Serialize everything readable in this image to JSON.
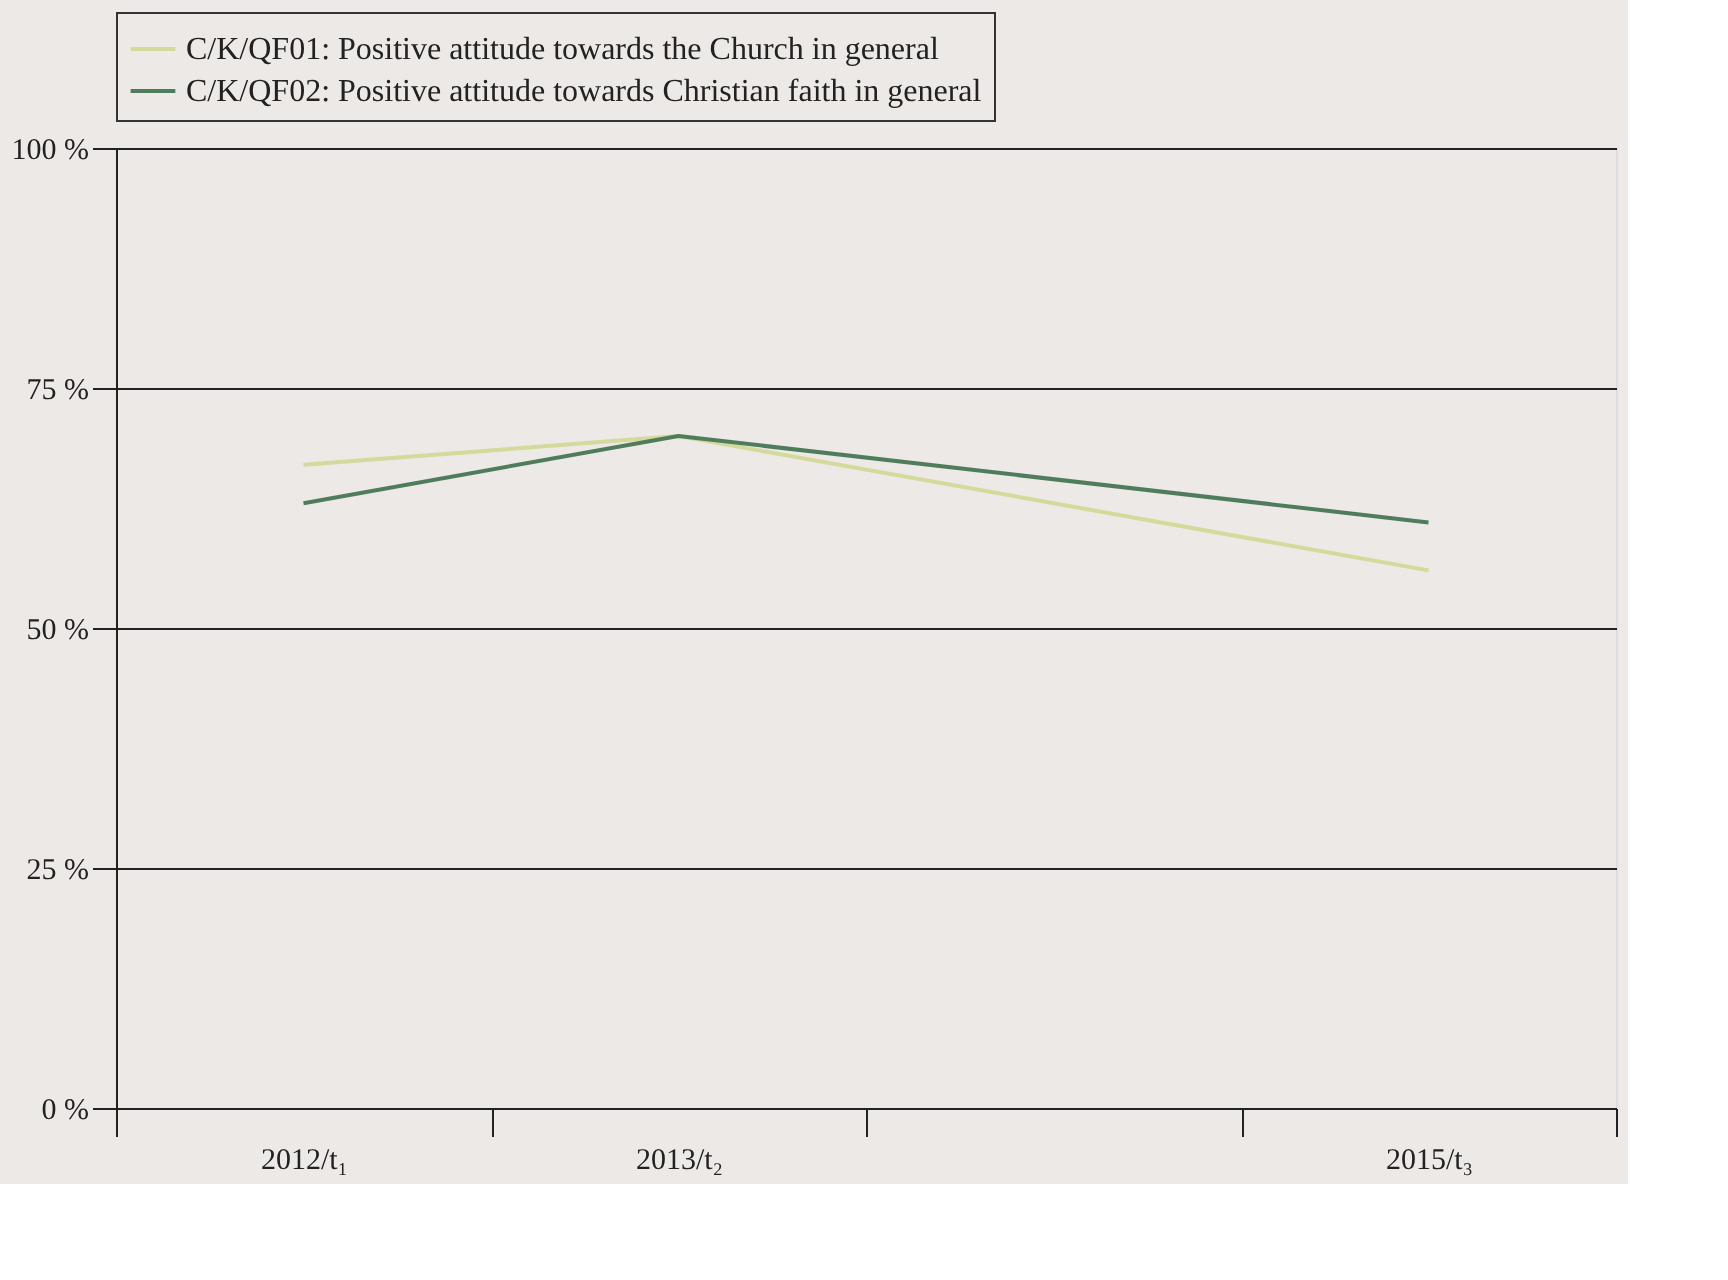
{
  "chart_data": {
    "type": "line",
    "x": [
      2012,
      2013,
      2015
    ],
    "series": [
      {
        "name": "C/K/QF01: Positive attitude towards the Church in general",
        "color": "#d3da9a",
        "values": [
          67,
          70,
          56
        ]
      },
      {
        "name": "C/K/QF02: Positive attitude towards Christian faith in general",
        "color": "#4f7d5c",
        "values": [
          63,
          70,
          61
        ]
      }
    ],
    "xlim": [
      2011.5,
      2015.5
    ],
    "xticks": [
      {
        "value": 2011.5,
        "label": null
      },
      {
        "value": 2012,
        "label": "2012/t₁"
      },
      {
        "value": 2012.5,
        "label": null
      },
      {
        "value": 2013,
        "label": "2013/t₂"
      },
      {
        "value": 2013.5,
        "label": null
      },
      {
        "value": 2014.5,
        "label": null
      },
      {
        "value": 2015,
        "label": "2015/t₃"
      },
      {
        "value": 2015.5,
        "label": null
      }
    ],
    "ylim": [
      0,
      100
    ],
    "yticks": [
      {
        "value": 0,
        "label": "0 %"
      },
      {
        "value": 25,
        "label": "25 %"
      },
      {
        "value": 50,
        "label": "50 %"
      },
      {
        "value": 75,
        "label": "75 %"
      },
      {
        "value": 100,
        "label": "100 %"
      }
    ],
    "grid": "y",
    "legend": "top",
    "marker": "none",
    "line_style": "solid"
  }
}
